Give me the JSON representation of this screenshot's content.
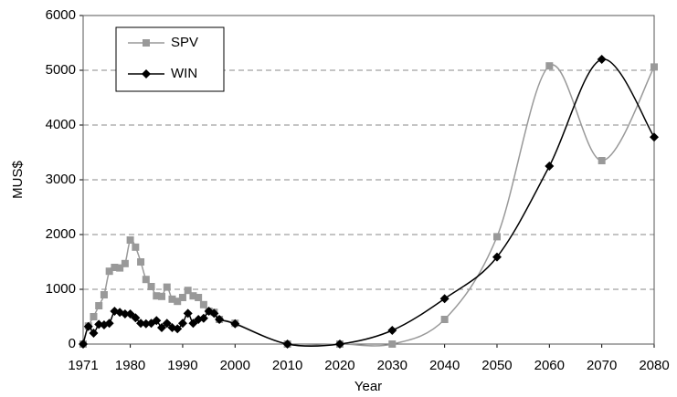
{
  "chart_data": {
    "type": "line",
    "x_label": "Year",
    "y_label": "MUS$",
    "x": [
      1971,
      1972,
      1973,
      1974,
      1975,
      1976,
      1977,
      1978,
      1979,
      1980,
      1981,
      1982,
      1983,
      1984,
      1985,
      1986,
      1987,
      1988,
      1989,
      1990,
      1991,
      1992,
      1993,
      1994,
      1995,
      1996,
      1997,
      2000,
      2010,
      2020,
      2030,
      2040,
      2050,
      2060,
      2070,
      2080
    ],
    "series": [
      {
        "name": "SPV",
        "color": "#999999",
        "marker": "square",
        "values": [
          0,
          330,
          500,
          700,
          900,
          1330,
          1400,
          1390,
          1470,
          1900,
          1770,
          1500,
          1180,
          1050,
          880,
          870,
          1040,
          820,
          780,
          850,
          980,
          880,
          850,
          720,
          600,
          580,
          450,
          380,
          0,
          0,
          0,
          450,
          1960,
          5080,
          3350,
          5060
        ]
      },
      {
        "name": "WIN",
        "color": "#000000",
        "marker": "diamond",
        "values": [
          0,
          320,
          200,
          360,
          350,
          380,
          600,
          580,
          550,
          550,
          480,
          380,
          370,
          380,
          430,
          300,
          380,
          300,
          280,
          380,
          560,
          380,
          450,
          470,
          600,
          560,
          450,
          370,
          0,
          0,
          250,
          830,
          1590,
          3250,
          5200,
          3780
        ]
      }
    ],
    "xlim": [
      1971,
      2080
    ],
    "xticks": [
      1971,
      1980,
      1990,
      2000,
      2010,
      2020,
      2030,
      2040,
      2050,
      2060,
      2070,
      2080
    ],
    "ylim": [
      0,
      6000
    ],
    "yticks": [
      0,
      1000,
      2000,
      3000,
      4000,
      5000,
      6000
    ],
    "grid": true,
    "legend": "upper left"
  }
}
